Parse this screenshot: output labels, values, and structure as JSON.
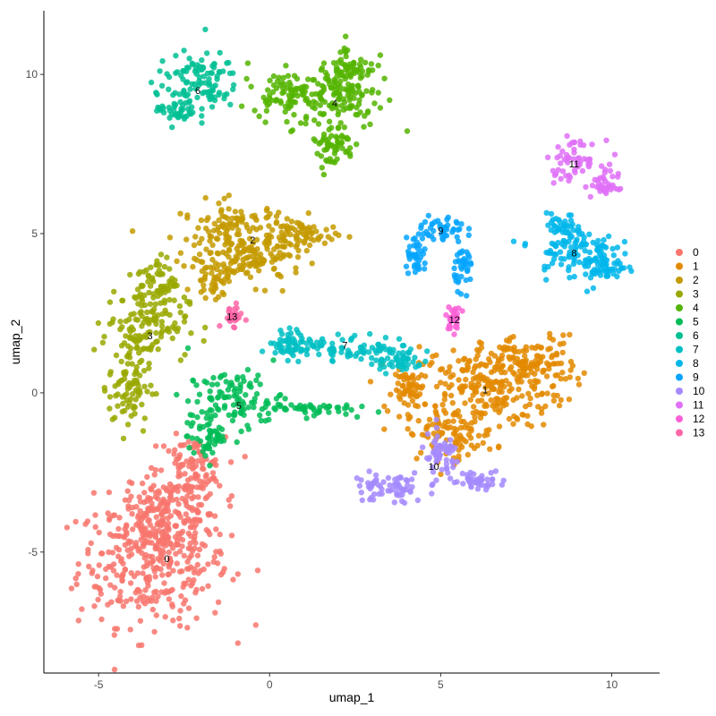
{
  "chart_data": {
    "type": "scatter",
    "title": "",
    "xlabel": "umap_1",
    "ylabel": "umap_2",
    "xlim": [
      -6.6,
      11.4
    ],
    "ylim": [
      -8.8,
      12.0
    ],
    "xticks": [
      -5,
      0,
      5,
      10
    ],
    "yticks": [
      -5,
      0,
      5,
      10
    ],
    "xtick_labels": [
      "-5",
      "0",
      "5",
      "10"
    ],
    "ytick_labels": [
      "-5",
      "0",
      "5",
      "10"
    ],
    "grid": false,
    "legend_position": "right",
    "series": [
      {
        "name": "0",
        "color": "#F8766D",
        "label_pos": [
          -3.0,
          -5.2
        ],
        "blobs": [
          [
            -3.4,
            -5.3,
            2.2,
            2.0
          ],
          [
            -3.0,
            -3.8,
            1.5,
            1.3
          ],
          [
            -2.3,
            -2.4,
            1.0,
            1.0
          ]
        ]
      },
      {
        "name": "1",
        "color": "#E38900",
        "label_pos": [
          6.3,
          0.1
        ],
        "blobs": [
          [
            6.3,
            0.2,
            2.3,
            1.3
          ],
          [
            7.6,
            1.0,
            1.4,
            0.8
          ],
          [
            5.3,
            -1.3,
            1.3,
            0.8
          ],
          [
            4.2,
            0.1,
            0.6,
            0.6
          ]
        ]
      },
      {
        "name": "2",
        "color": "#C49A00",
        "label_pos": [
          -0.5,
          4.8
        ],
        "blobs": [
          [
            -1.0,
            5.0,
            1.6,
            1.0
          ],
          [
            -0.4,
            4.2,
            1.4,
            0.8
          ],
          [
            1.0,
            5.0,
            0.9,
            0.5
          ],
          [
            -1.6,
            3.6,
            0.6,
            0.6
          ]
        ]
      },
      {
        "name": "3",
        "color": "#99A800",
        "label_pos": [
          -3.5,
          1.8
        ],
        "blobs": [
          [
            -3.6,
            2.2,
            1.2,
            1.1
          ],
          [
            -4.1,
            0.3,
            0.6,
            1.6
          ],
          [
            -3.3,
            3.5,
            0.6,
            0.8
          ]
        ]
      },
      {
        "name": "4",
        "color": "#53B400",
        "label_pos": [
          1.9,
          9.1
        ],
        "blobs": [
          [
            1.9,
            9.3,
            1.5,
            1.0
          ],
          [
            2.4,
            10.2,
            0.7,
            0.8
          ],
          [
            1.8,
            7.8,
            0.7,
            0.7
          ],
          [
            0.3,
            9.4,
            0.8,
            0.6
          ]
        ]
      },
      {
        "name": "5",
        "color": "#00BC56",
        "label_pos": [
          -0.9,
          -0.4
        ],
        "blobs": [
          [
            -1.0,
            -0.2,
            1.4,
            0.9
          ],
          [
            -1.8,
            -1.4,
            0.6,
            0.7
          ],
          [
            1.2,
            -0.5,
            1.2,
            0.2
          ]
        ]
      },
      {
        "name": "6",
        "color": "#00C094",
        "label_pos": [
          -2.1,
          9.5
        ],
        "blobs": [
          [
            -2.1,
            9.8,
            1.2,
            0.9
          ],
          [
            -2.7,
            8.9,
            0.6,
            0.5
          ]
        ]
      },
      {
        "name": "7",
        "color": "#00BFC4",
        "label_pos": [
          2.2,
          1.5
        ],
        "blobs": [
          [
            2.2,
            1.4,
            2.2,
            0.4
          ],
          [
            0.8,
            1.6,
            0.8,
            0.4
          ],
          [
            3.7,
            1.0,
            0.8,
            0.4
          ]
        ]
      },
      {
        "name": "8",
        "color": "#00B6EB",
        "label_pos": [
          8.9,
          4.4
        ],
        "blobs": [
          [
            8.9,
            4.4,
            1.2,
            0.8
          ],
          [
            9.8,
            4.0,
            0.6,
            0.6
          ],
          [
            8.6,
            5.1,
            0.5,
            0.5
          ]
        ]
      },
      {
        "name": "9",
        "color": "#06A4FF",
        "label_pos": [
          5.0,
          5.1
        ],
        "blobs": [
          [
            5.0,
            5.1,
            0.7,
            0.5
          ],
          [
            5.7,
            4.0,
            0.3,
            0.7
          ],
          [
            4.3,
            4.2,
            0.3,
            0.5
          ]
        ]
      },
      {
        "name": "10",
        "color": "#A58AFF",
        "label_pos": [
          4.8,
          -2.3
        ],
        "blobs": [
          [
            5.0,
            -2.0,
            0.6,
            0.7
          ],
          [
            3.5,
            -3.0,
            1.1,
            0.5
          ],
          [
            6.0,
            -2.7,
            0.9,
            0.3
          ]
        ]
      },
      {
        "name": "11",
        "color": "#DF70F8",
        "label_pos": [
          8.9,
          7.2
        ],
        "blobs": [
          [
            8.9,
            7.3,
            0.8,
            0.6
          ],
          [
            9.8,
            6.5,
            0.4,
            0.4
          ]
        ]
      },
      {
        "name": "12",
        "color": "#FB61D7",
        "label_pos": [
          5.4,
          2.3
        ],
        "blobs": [
          [
            5.4,
            2.3,
            0.2,
            0.4
          ]
        ]
      },
      {
        "name": "13",
        "color": "#FF66A8",
        "label_pos": [
          -1.1,
          2.4
        ],
        "blobs": [
          [
            -1.1,
            2.4,
            0.3,
            0.3
          ]
        ]
      }
    ]
  }
}
